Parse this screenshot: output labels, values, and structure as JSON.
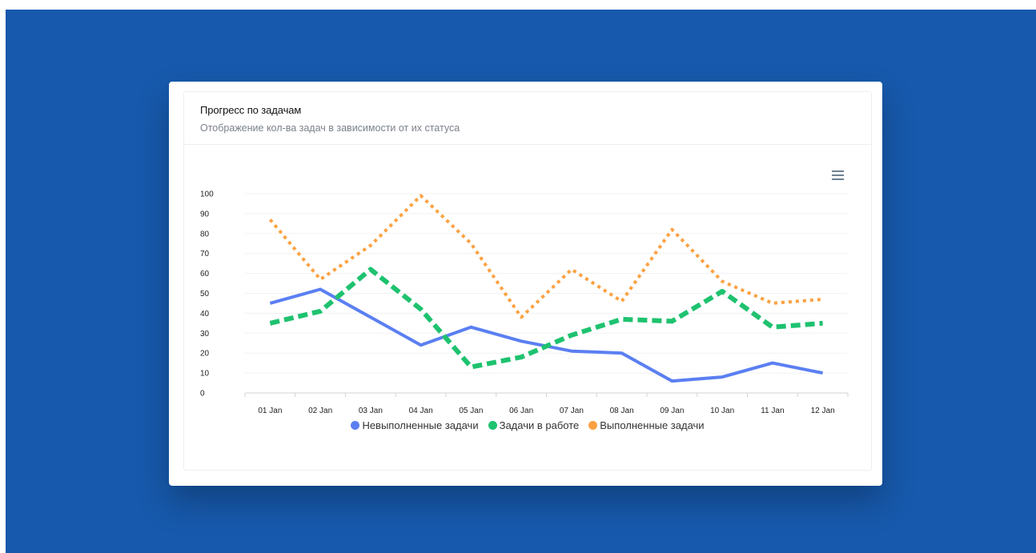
{
  "card": {
    "title": "Прогресс по задачам",
    "subtitle": "Отображение кол-ва задач в зависимости от их статуса"
  },
  "icons": {
    "menu": "hamburger-menu-icon"
  },
  "chart_data": {
    "type": "line",
    "categories": [
      "01 Jan",
      "02 Jan",
      "03 Jan",
      "04 Jan",
      "05 Jan",
      "06 Jan",
      "07 Jan",
      "08 Jan",
      "09 Jan",
      "10 Jan",
      "11 Jan",
      "12 Jan"
    ],
    "ylim": [
      0,
      100
    ],
    "yticks": [
      0,
      10,
      20,
      30,
      40,
      50,
      60,
      70,
      80,
      90,
      100
    ],
    "grid": true,
    "legend_position": "bottom",
    "series": [
      {
        "name": "Невыполненные задачи",
        "color": "#5b7ff2",
        "style": "solid",
        "values": [
          45,
          52,
          38,
          24,
          33,
          26,
          21,
          20,
          6,
          8,
          15,
          10
        ]
      },
      {
        "name": "Задачи в работе",
        "color": "#1ec26f",
        "style": "dashed",
        "values": [
          35,
          41,
          62,
          42,
          13,
          18,
          29,
          37,
          36,
          51,
          33,
          35
        ]
      },
      {
        "name": "Выполненные задачи",
        "color": "#fca142",
        "style": "dotted",
        "values": [
          87,
          57,
          74,
          99,
          75,
          38,
          62,
          46,
          82,
          56,
          45,
          47
        ]
      }
    ]
  }
}
